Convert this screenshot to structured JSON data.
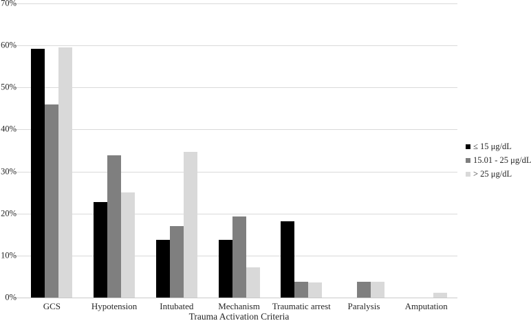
{
  "chart_data": {
    "type": "bar",
    "title": "",
    "xlabel": "Trauma Activation Criteria",
    "ylabel": "",
    "ylim": [
      0,
      70
    ],
    "yticks": [
      "70%",
      "60%",
      "50%",
      "40%",
      "30%",
      "20%",
      "10%",
      "0%"
    ],
    "grid": true,
    "gridline_color": "#d9d9d9",
    "legend_position": "right",
    "categories": [
      "GCS",
      "Hypotension",
      "Intubated",
      "Mechanism",
      "Traumatic arrest",
      "Paralysis",
      "Amputation"
    ],
    "series": [
      {
        "name": "≤ 15 μg/dL",
        "color": "#000000",
        "values": [
          59.2,
          22.7,
          13.7,
          13.7,
          18.1,
          0,
          0
        ]
      },
      {
        "name": "15.01 - 25 μg/dL",
        "color": "#7f7f7f",
        "values": [
          45.9,
          33.8,
          17.0,
          19.3,
          3.8,
          3.8,
          0
        ]
      },
      {
        "name": "> 25 μg/dL",
        "color": "#d9d9d9",
        "values": [
          59.6,
          25.0,
          34.7,
          7.2,
          3.6,
          3.7,
          1.2
        ]
      }
    ]
  }
}
